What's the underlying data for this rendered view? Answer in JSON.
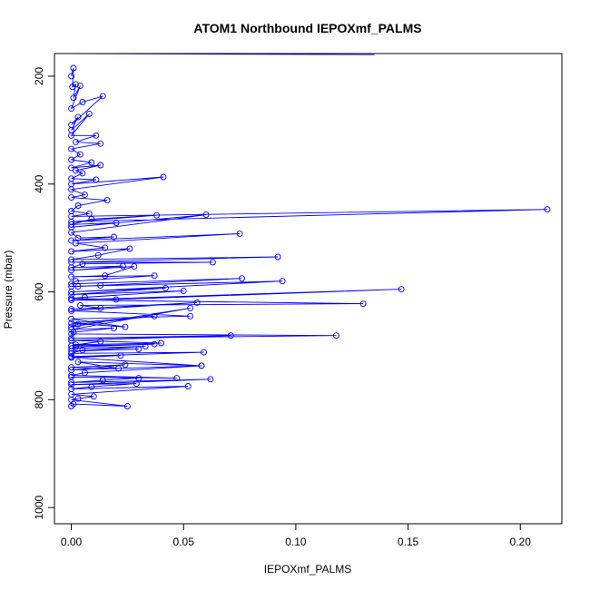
{
  "chart_data": {
    "type": "line",
    "title": "ATOM1 Northbound IEPOXmf_PALMS",
    "xlabel": "IEPOXmf_PALMS",
    "ylabel": "Pressure (mbar)",
    "xlim": [
      -0.0075,
      0.2185
    ],
    "ylim": [
      1030,
      158
    ],
    "y_reversed": true,
    "grid": false,
    "legend": "none",
    "x_ticks": [
      0.0,
      0.05,
      0.1,
      0.15,
      0.2
    ],
    "x_tick_labels": [
      "0.00",
      "0.05",
      "0.10",
      "0.15",
      "0.20"
    ],
    "y_ticks": [
      200,
      400,
      600,
      800,
      1000
    ],
    "y_tick_labels": [
      "200",
      "400",
      "600",
      "800",
      "1000"
    ],
    "series": [
      {
        "color": "#0000ff",
        "marker": "open-circle",
        "x": [
          0.0,
          0.001,
          0.0005,
          0.002,
          0.001,
          0.004,
          0.0,
          0.005,
          0.014,
          0.0,
          0.003,
          0.0,
          0.008,
          0.0,
          0.011,
          0.002,
          0.013,
          0.0,
          0.004,
          0.0,
          0.009,
          0.0,
          0.013,
          0.002,
          0.005,
          0.0,
          0.011,
          0.0,
          0.041,
          0.0,
          0.006,
          0.0,
          0.016,
          0.003,
          0.0,
          0.008,
          0.0,
          0.212,
          0.0,
          0.038,
          0.009,
          0.0,
          0.02,
          0.0,
          0.06,
          0.0,
          0.003,
          0.019,
          0.0,
          0.075,
          0.002,
          0.015,
          0.0,
          0.026,
          0.012,
          0.0,
          0.092,
          0.0,
          0.063,
          0.005,
          0.0,
          0.023,
          0.0,
          0.028,
          0.015,
          0.0,
          0.037,
          0.002,
          0.0,
          0.076,
          0.003,
          0.013,
          0.0,
          0.094,
          0.0,
          0.042,
          0.0,
          0.05,
          0.006,
          0.0,
          0.02,
          0.147,
          0.0,
          0.13,
          0.004,
          0.013,
          0.0,
          0.056,
          0.0,
          0.053,
          0.0,
          0.024,
          0.0,
          0.037,
          0.003,
          0.0,
          0.053,
          0.0,
          0.019,
          0.001,
          0.0,
          0.118,
          0.0,
          0.071,
          0.0,
          0.04,
          0.002,
          0.013,
          0.0,
          0.037,
          0.002,
          0.0,
          0.033,
          0.0,
          0.03,
          0.005,
          0.0,
          0.059,
          0.0,
          0.022,
          0.0,
          0.058,
          0.003,
          0.021,
          0.0,
          0.024,
          0.0,
          0.058,
          0.006,
          0.0,
          0.047,
          0.0,
          0.03,
          0.014,
          0.0,
          0.062,
          0.0,
          0.029,
          0.009,
          0.0,
          0.052,
          0.0,
          0.01,
          0.003,
          0.0,
          0.025,
          0.001,
          0.0
        ],
        "y": [
          200,
          185,
          220,
          215,
          240,
          218,
          260,
          248,
          237,
          290,
          276,
          300,
          270,
          310,
          310,
          322,
          325,
          335,
          345,
          355,
          360,
          370,
          365,
          375,
          380,
          390,
          392,
          400,
          387,
          410,
          420,
          425,
          430,
          440,
          450,
          455,
          460,
          447,
          470,
          458,
          465,
          475,
          472,
          480,
          457,
          490,
          500,
          498,
          505,
          492,
          510,
          518,
          525,
          520,
          532,
          540,
          535,
          545,
          545,
          548,
          555,
          552,
          560,
          553,
          570,
          572,
          570,
          580,
          585,
          575,
          590,
          588,
          590,
          580,
          600,
          593,
          605,
          598,
          610,
          612,
          614,
          595,
          615,
          622,
          625,
          630,
          632,
          620,
          635,
          645,
          650,
          665,
          658,
          645,
          660,
          665,
          630,
          670,
          667,
          675,
          678,
          681,
          686,
          681,
          690,
          695,
          698,
          692,
          700,
          697,
          702,
          705,
          701,
          710,
          706,
          708,
          714,
          712,
          720,
          718,
          722,
          737,
          730,
          742,
          740,
          735,
          745,
          737,
          750,
          755,
          760,
          758,
          760,
          764,
          768,
          762,
          772,
          770,
          776,
          780,
          775,
          790,
          794,
          798,
          800,
          812,
          808,
          812
        ]
      },
      {
        "color": "#0000ff",
        "marker": "none",
        "x": [
          0.0,
          0.135
        ],
        "y": [
          158,
          160
        ]
      }
    ]
  }
}
